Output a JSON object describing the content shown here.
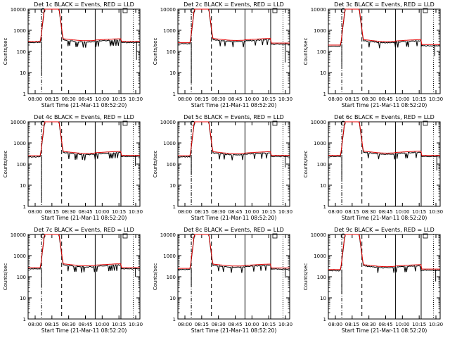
{
  "figure": {
    "xaxis_title": "Start Time (21-Mar-11 08:52:20)",
    "ylabel": "Counts/sec",
    "xtick_labels": [
      "08:00",
      "08:15",
      "08:30",
      "08:45",
      "10:00",
      "10:15",
      "10:30"
    ],
    "ytick_labels": [
      "1",
      "10",
      "100",
      "1000",
      "10000"
    ]
  },
  "colors": {
    "events": "#000000",
    "lld": "#e00000",
    "axes": "#000000"
  },
  "chart_data": [
    {
      "type": "line",
      "title": "Det 1c BLACK = Events, RED = LLD",
      "xlabel": "Start Time (21-Mar-11 08:52:20)",
      "ylabel": "Counts/sec",
      "x_categories": [
        "08:00",
        "08:15",
        "08:30",
        "08:45",
        "10:00",
        "10:15",
        "10:30"
      ],
      "yscale": "log",
      "ylim": [
        1,
        10000
      ],
      "baseline_pre": 300,
      "baseline_post": 300,
      "mid_level": 330,
      "gap_level": 250,
      "dips": [
        [
          0.12,
          8
        ],
        [
          0.97,
          40
        ]
      ],
      "markers": [
        {
          "pos": 0.12,
          "style": "dash-dot"
        },
        {
          "pos": 0.3,
          "style": "dashed"
        },
        {
          "pos": 0.6,
          "style": "solid"
        },
        {
          "pos": 0.83,
          "style": "solid"
        },
        {
          "pos": 0.94,
          "style": "dotted"
        }
      ],
      "series": [
        {
          "name": "Events",
          "color": "#000000"
        },
        {
          "name": "LLD",
          "color": "#e00000"
        }
      ]
    },
    {
      "type": "line",
      "title": "Det 2c BLACK = Events, RED = LLD",
      "xlabel": "Start Time (21-Mar-11 08:52:20)",
      "ylabel": "Counts/sec",
      "x_categories": [
        "08:00",
        "08:15",
        "08:30",
        "08:45",
        "10:00",
        "10:15",
        "10:30"
      ],
      "yscale": "log",
      "ylim": [
        1,
        10000
      ],
      "baseline_pre": 260,
      "baseline_post": 250,
      "mid_level": 340,
      "gap_level": 220,
      "dips": [
        [
          0.12,
          3
        ],
        [
          0.96,
          30
        ]
      ],
      "markers": [
        {
          "pos": 0.12,
          "style": "dash-dot"
        },
        {
          "pos": 0.3,
          "style": "dashed"
        },
        {
          "pos": 0.6,
          "style": "solid"
        },
        {
          "pos": 0.83,
          "style": "solid"
        },
        {
          "pos": 0.94,
          "style": "dotted"
        }
      ],
      "series": [
        {
          "name": "Events",
          "color": "#000000"
        },
        {
          "name": "LLD",
          "color": "#e00000"
        }
      ]
    },
    {
      "type": "line",
      "title": "Det 3c BLACK = Events, RED = LLD",
      "xlabel": "Start Time (21-Mar-11 08:52:20)",
      "ylabel": "Counts/sec",
      "x_categories": [
        "08:00",
        "08:15",
        "08:30",
        "08:45",
        "10:00",
        "10:15",
        "10:30"
      ],
      "yscale": "log",
      "ylim": [
        1,
        10000
      ],
      "baseline_pre": 200,
      "baseline_post": 210,
      "mid_level": 300,
      "gap_level": 180,
      "dips": [
        [
          0.12,
          20
        ],
        [
          0.95,
          60
        ]
      ],
      "markers": [
        {
          "pos": 0.12,
          "style": "dash-dot"
        },
        {
          "pos": 0.3,
          "style": "dashed"
        },
        {
          "pos": 0.6,
          "style": "solid"
        },
        {
          "pos": 0.83,
          "style": "solid"
        },
        {
          "pos": 0.94,
          "style": "dotted"
        }
      ],
      "series": [
        {
          "name": "Events",
          "color": "#000000"
        },
        {
          "name": "LLD",
          "color": "#e00000"
        }
      ]
    },
    {
      "type": "line",
      "title": "Det 4c BLACK = Events, RED = LLD",
      "xlabel": "Start Time (21-Mar-11 08:52:20)",
      "ylabel": "Counts/sec",
      "x_categories": [
        "08:00",
        "08:15",
        "08:30",
        "08:45",
        "10:00",
        "10:15",
        "10:30"
      ],
      "yscale": "log",
      "ylim": [
        1,
        10000
      ],
      "baseline_pre": 250,
      "baseline_post": 260,
      "mid_level": 330,
      "gap_level": 220,
      "dips": [
        [
          0.12,
          2
        ],
        [
          0.96,
          80
        ]
      ],
      "markers": [
        {
          "pos": 0.12,
          "style": "dash-dot"
        },
        {
          "pos": 0.3,
          "style": "dashed"
        },
        {
          "pos": 0.6,
          "style": "solid"
        },
        {
          "pos": 0.83,
          "style": "solid"
        },
        {
          "pos": 0.94,
          "style": "dotted"
        }
      ],
      "series": [
        {
          "name": "Events",
          "color": "#000000"
        },
        {
          "name": "LLD",
          "color": "#e00000"
        }
      ]
    },
    {
      "type": "line",
      "title": "Det 5c BLACK = Events, RED = LLD",
      "xlabel": "Start Time (21-Mar-11 08:52:20)",
      "ylabel": "Counts/sec",
      "x_categories": [
        "08:00",
        "08:15",
        "08:30",
        "08:45",
        "10:00",
        "10:15",
        "10:30"
      ],
      "yscale": "log",
      "ylim": [
        1,
        10000
      ],
      "baseline_pre": 250,
      "baseline_post": 260,
      "mid_level": 320,
      "gap_level": 220,
      "dips": [
        [
          0.12,
          30
        ],
        [
          0.96,
          70
        ]
      ],
      "markers": [
        {
          "pos": 0.12,
          "style": "dash-dot"
        },
        {
          "pos": 0.3,
          "style": "dashed"
        },
        {
          "pos": 0.6,
          "style": "solid"
        },
        {
          "pos": 0.83,
          "style": "solid"
        },
        {
          "pos": 0.94,
          "style": "dotted"
        }
      ],
      "series": [
        {
          "name": "Events",
          "color": "#000000"
        },
        {
          "name": "LLD",
          "color": "#e00000"
        }
      ]
    },
    {
      "type": "line",
      "title": "Det 6c BLACK = Events, RED = LLD",
      "xlabel": "Start Time (21-Mar-11 08:52:20)",
      "ylabel": "Counts/sec",
      "x_categories": [
        "08:00",
        "08:15",
        "08:30",
        "08:45",
        "10:00",
        "10:15",
        "10:30"
      ],
      "yscale": "log",
      "ylim": [
        1,
        10000
      ],
      "baseline_pre": 260,
      "baseline_post": 260,
      "mid_level": 340,
      "gap_level": 220,
      "dips": [
        [
          0.12,
          20
        ],
        [
          0.97,
          50
        ]
      ],
      "markers": [
        {
          "pos": 0.12,
          "style": "dash-dot"
        },
        {
          "pos": 0.3,
          "style": "dashed"
        },
        {
          "pos": 0.6,
          "style": "solid"
        },
        {
          "pos": 0.83,
          "style": "solid"
        },
        {
          "pos": 0.94,
          "style": "dotted"
        }
      ],
      "series": [
        {
          "name": "Events",
          "color": "#000000"
        },
        {
          "name": "LLD",
          "color": "#e00000"
        }
      ]
    },
    {
      "type": "line",
      "title": "Det 7c BLACK = Events, RED = LLD",
      "xlabel": "Start Time (21-Mar-11 08:52:20)",
      "ylabel": "Counts/sec",
      "x_categories": [
        "08:00",
        "08:15",
        "08:30",
        "08:45",
        "10:00",
        "10:15",
        "10:30"
      ],
      "yscale": "log",
      "ylim": [
        1,
        10000
      ],
      "baseline_pre": 270,
      "baseline_post": 270,
      "mid_level": 340,
      "gap_level": 220,
      "dips": [
        [
          0.12,
          30
        ],
        [
          0.96,
          100
        ]
      ],
      "markers": [
        {
          "pos": 0.12,
          "style": "dash-dot"
        },
        {
          "pos": 0.3,
          "style": "dashed"
        },
        {
          "pos": 0.6,
          "style": "solid"
        },
        {
          "pos": 0.83,
          "style": "solid"
        },
        {
          "pos": 0.94,
          "style": "dotted"
        }
      ],
      "series": [
        {
          "name": "Events",
          "color": "#000000"
        },
        {
          "name": "LLD",
          "color": "#e00000"
        }
      ]
    },
    {
      "type": "line",
      "title": "Det 8c BLACK = Events, RED = LLD",
      "xlabel": "Start Time (21-Mar-11 08:52:20)",
      "ylabel": "Counts/sec",
      "x_categories": [
        "08:00",
        "08:15",
        "08:30",
        "08:45",
        "10:00",
        "10:15",
        "10:30"
      ],
      "yscale": "log",
      "ylim": [
        1,
        10000
      ],
      "baseline_pre": 250,
      "baseline_post": 260,
      "mid_level": 330,
      "gap_level": 220,
      "dips": [
        [
          0.12,
          40
        ],
        [
          0.96,
          90
        ]
      ],
      "markers": [
        {
          "pos": 0.12,
          "style": "dash-dot"
        },
        {
          "pos": 0.3,
          "style": "dashed"
        },
        {
          "pos": 0.6,
          "style": "solid"
        },
        {
          "pos": 0.83,
          "style": "solid"
        },
        {
          "pos": 0.94,
          "style": "dotted"
        }
      ],
      "series": [
        {
          "name": "Events",
          "color": "#000000"
        },
        {
          "name": "LLD",
          "color": "#e00000"
        }
      ]
    },
    {
      "type": "line",
      "title": "Det 9c BLACK = Events, RED = LLD",
      "xlabel": "Start Time (21-Mar-11 08:52:20)",
      "ylabel": "Counts/sec",
      "x_categories": [
        "08:00",
        "08:15",
        "08:30",
        "08:45",
        "10:00",
        "10:15",
        "10:30"
      ],
      "yscale": "log",
      "ylim": [
        1,
        10000
      ],
      "baseline_pre": 220,
      "baseline_post": 230,
      "mid_level": 310,
      "gap_level": 200,
      "dips": [
        [
          0.12,
          15
        ],
        [
          0.96,
          60
        ]
      ],
      "markers": [
        {
          "pos": 0.12,
          "style": "dash-dot"
        },
        {
          "pos": 0.3,
          "style": "dashed"
        },
        {
          "pos": 0.6,
          "style": "solid"
        },
        {
          "pos": 0.83,
          "style": "solid"
        },
        {
          "pos": 0.94,
          "style": "dotted"
        }
      ],
      "series": [
        {
          "name": "Events",
          "color": "#000000"
        },
        {
          "name": "LLD",
          "color": "#e00000"
        }
      ]
    }
  ]
}
